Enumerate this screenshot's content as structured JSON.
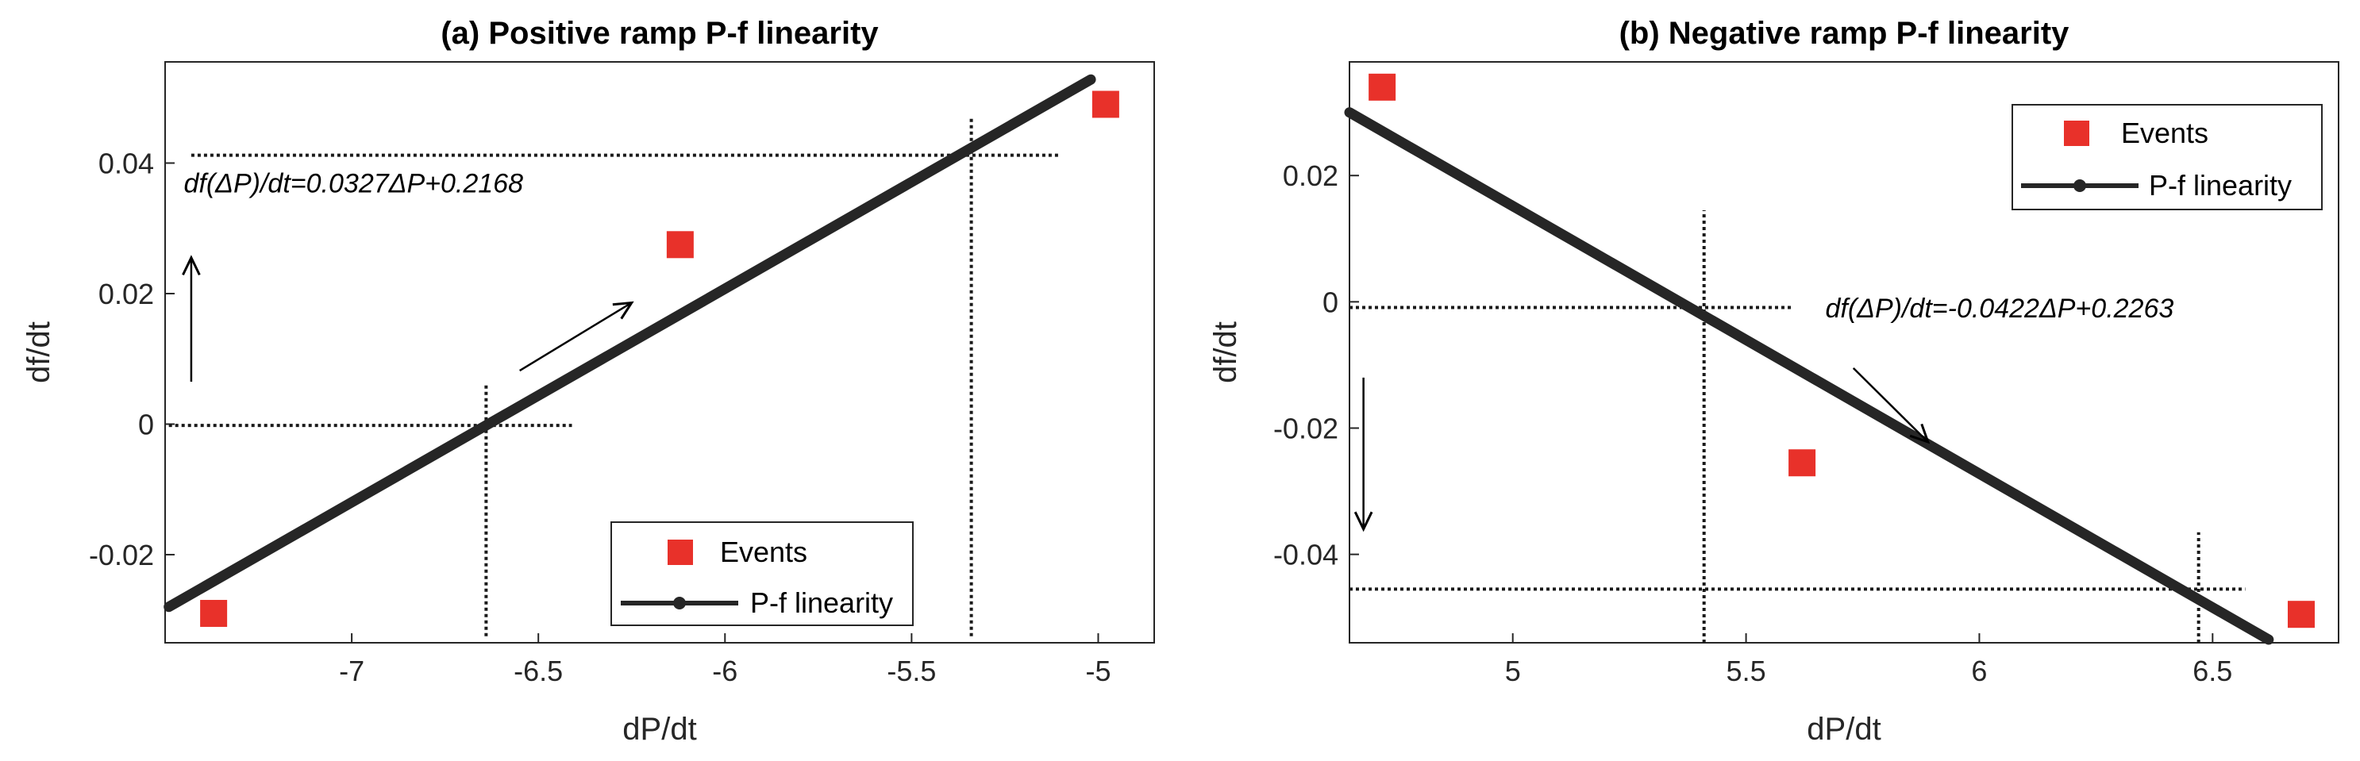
{
  "chart_data": [
    {
      "type": "scatter",
      "title": "(a) Positive ramp P-f linearity",
      "xlabel": "dP/dt",
      "ylabel": "df/dt",
      "xlim": [
        -7.5,
        -4.85
      ],
      "ylim": [
        -0.0335,
        0.0555
      ],
      "xticks": [
        -7,
        -6.5,
        -6,
        -5.5,
        -5
      ],
      "xtick_labels": [
        "-7",
        "-6.5",
        "-6",
        "-5.5",
        "-5"
      ],
      "yticks": [
        -0.02,
        0,
        0.02,
        0.04
      ],
      "ytick_labels": [
        "-0.02",
        "0",
        "0.02",
        "0.04"
      ],
      "events": [
        {
          "x": -7.37,
          "y": -0.029
        },
        {
          "x": -6.12,
          "y": 0.0275
        },
        {
          "x": -4.98,
          "y": 0.049
        }
      ],
      "fit_line": [
        {
          "x": -7.49,
          "y": -0.028
        },
        {
          "x": -5.02,
          "y": 0.0528
        }
      ],
      "equation": "df(ΔP)/dt=0.0327ΔP+0.2168",
      "equation_pos": {
        "x": -7.45,
        "y": 0.0355
      },
      "arrows": [
        {
          "x1": -7.43,
          "y1": 0.0065,
          "x2": -7.43,
          "y2": 0.0255
        },
        {
          "x1": -6.55,
          "y1": 0.0082,
          "x2": -6.25,
          "y2": 0.0186
        }
      ],
      "guides_horizontal": [
        {
          "y": 0.0412,
          "x1": -7.43,
          "x2": -5.1
        },
        {
          "y": -0.0002,
          "x1": -7.49,
          "x2": -6.41
        }
      ],
      "guides_vertical": [
        {
          "x": -6.64,
          "y1": -0.0325,
          "y2": 0.0062
        },
        {
          "x": -5.34,
          "y1": -0.0325,
          "y2": 0.047
        }
      ],
      "legend": {
        "position": "bottom-center",
        "entries": [
          {
            "label": "Events",
            "marker": "square",
            "color": "#e8312a"
          },
          {
            "label": "P-f linearity",
            "marker": "line-dot",
            "color": "#262626"
          }
        ]
      }
    },
    {
      "type": "scatter",
      "title": "(b) Negative ramp P-f linearity",
      "xlabel": "dP/dt",
      "ylabel": "df/dt",
      "xlim": [
        4.65,
        6.77
      ],
      "ylim": [
        -0.054,
        0.038
      ],
      "xticks": [
        5,
        5.5,
        6,
        6.5
      ],
      "xtick_labels": [
        "5",
        "5.5",
        "6",
        "6.5"
      ],
      "yticks": [
        -0.04,
        -0.02,
        0,
        0.02
      ],
      "ytick_labels": [
        "-0.04",
        "-0.02",
        "0",
        "0.02"
      ],
      "events": [
        {
          "x": 4.72,
          "y": 0.034
        },
        {
          "x": 5.62,
          "y": -0.0255
        },
        {
          "x": 6.69,
          "y": -0.0495
        }
      ],
      "fit_line": [
        {
          "x": 4.65,
          "y": 0.03
        },
        {
          "x": 6.62,
          "y": -0.0535
        }
      ],
      "equation": "df(ΔP)/dt=-0.0422ΔP+0.2263",
      "equation_pos": {
        "x": 5.67,
        "y": -0.0025
      },
      "arrows": [
        {
          "x1": 5.73,
          "y1": -0.0105,
          "x2": 5.89,
          "y2": -0.0222
        },
        {
          "x1": 4.68,
          "y1": -0.012,
          "x2": 4.68,
          "y2": -0.036
        }
      ],
      "guides_horizontal": [
        {
          "y": -0.0009,
          "x1": 4.65,
          "x2": 5.6
        },
        {
          "y": -0.0455,
          "x1": 4.65,
          "x2": 6.57
        }
      ],
      "guides_vertical": [
        {
          "x": 5.41,
          "y1": -0.054,
          "y2": 0.0145
        },
        {
          "x": 6.47,
          "y1": -0.054,
          "y2": -0.0365
        }
      ],
      "legend": {
        "position": "top-right",
        "entries": [
          {
            "label": "Events",
            "marker": "square",
            "color": "#e8312a"
          },
          {
            "label": "P-f linearity",
            "marker": "line-dot",
            "color": "#262626"
          }
        ]
      }
    }
  ],
  "colors": {
    "events": "#e8312a",
    "fit_line": "#262626",
    "guides": "#1a1a1a",
    "axes": "#262626"
  }
}
